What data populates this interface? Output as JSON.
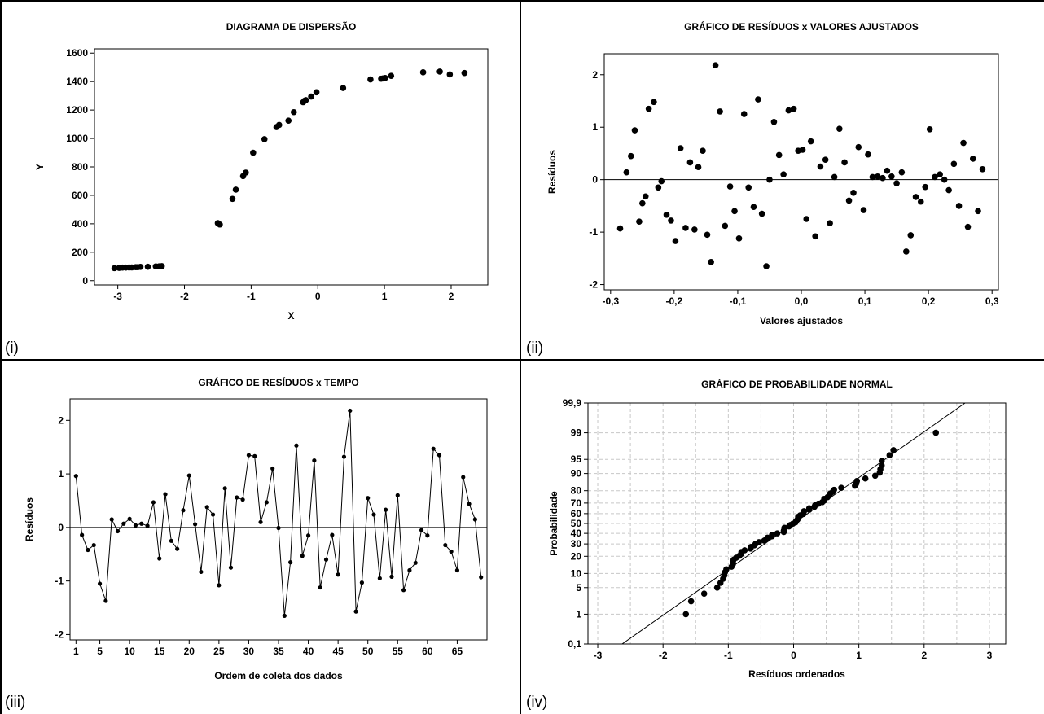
{
  "panels": [
    {
      "label": "(i)"
    },
    {
      "label": "(ii)"
    },
    {
      "label": "(iii)"
    },
    {
      "label": "(iv)"
    }
  ],
  "chart_data": [
    {
      "type": "scatter",
      "title": "DIAGRAMA DE DISPERSÃO",
      "xlabel": "X",
      "ylabel": "Y",
      "xlim": [
        -3.35,
        2.55
      ],
      "ylim": [
        -30,
        1630
      ],
      "xticks": [
        -3,
        -2,
        -1,
        0,
        1,
        2
      ],
      "yticks": [
        0,
        200,
        400,
        600,
        800,
        1000,
        1200,
        1400,
        1600
      ],
      "x": [
        -3.05,
        -2.98,
        -2.93,
        -2.88,
        -2.83,
        -2.79,
        -2.73,
        -2.7,
        -2.66,
        -2.55,
        -2.43,
        -2.38,
        -2.34,
        -1.5,
        -1.47,
        -1.28,
        -1.23,
        -1.12,
        -1.08,
        -0.97,
        -0.8,
        -0.62,
        -0.58,
        -0.44,
        -0.36,
        -0.22,
        -0.2,
        -0.18,
        -0.1,
        -0.02,
        0.38,
        0.79,
        0.95,
        0.98,
        1.01,
        1.1,
        1.58,
        1.83,
        1.98,
        2.2
      ],
      "y": [
        88,
        90,
        92,
        92,
        93,
        93,
        95,
        95,
        97,
        98,
        100,
        101,
        102,
        405,
        395,
        575,
        640,
        735,
        760,
        900,
        995,
        1080,
        1095,
        1125,
        1185,
        1255,
        1265,
        1270,
        1295,
        1325,
        1355,
        1415,
        1420,
        1422,
        1425,
        1440,
        1465,
        1470,
        1450,
        1460
      ]
    },
    {
      "type": "scatter",
      "title": "GRÁFICO DE RESÍDUOS x VALORES AJUSTADOS",
      "xlabel": "Valores ajustados",
      "ylabel": "Resíduos",
      "xlim": [
        -0.31,
        0.31
      ],
      "ylim": [
        -2.1,
        2.4
      ],
      "xticks": [
        -0.3,
        -0.2,
        -0.1,
        0.0,
        0.1,
        0.2,
        0.3
      ],
      "xticklabels": [
        "-0,3",
        "-0,2",
        "-0,1",
        "0,0",
        "0,1",
        "0,2",
        "0,3"
      ],
      "yticks": [
        -2,
        -1,
        0,
        1,
        2
      ],
      "hline": 0,
      "x": [
        -0.285,
        -0.275,
        -0.268,
        -0.262,
        -0.255,
        -0.25,
        -0.245,
        -0.24,
        -0.232,
        -0.225,
        -0.22,
        -0.212,
        -0.205,
        -0.198,
        -0.19,
        -0.182,
        -0.175,
        -0.168,
        -0.162,
        -0.155,
        -0.148,
        -0.142,
        -0.135,
        -0.128,
        -0.12,
        -0.112,
        -0.105,
        -0.098,
        -0.09,
        -0.083,
        -0.075,
        -0.068,
        -0.062,
        -0.055,
        -0.05,
        -0.043,
        -0.035,
        -0.028,
        -0.02,
        -0.012,
        -0.005,
        0.002,
        0.008,
        0.015,
        0.022,
        0.03,
        0.038,
        0.045,
        0.052,
        0.06,
        0.068,
        0.075,
        0.082,
        0.09,
        0.098,
        0.105,
        0.112,
        0.12,
        0.128,
        0.135,
        0.142,
        0.15,
        0.158,
        0.165,
        0.172,
        0.18,
        0.188,
        0.195,
        0.202,
        0.21,
        0.218,
        0.225,
        0.232,
        0.24,
        0.248,
        0.255,
        0.262,
        0.27,
        0.278,
        0.285
      ],
      "y": [
        -0.93,
        0.14,
        0.45,
        0.94,
        -0.8,
        -0.45,
        -0.32,
        1.35,
        1.48,
        -0.15,
        -0.03,
        -0.67,
        -0.78,
        -1.17,
        0.6,
        -0.92,
        0.33,
        -0.95,
        0.24,
        0.55,
        -1.05,
        -1.57,
        2.18,
        1.3,
        -0.88,
        -0.13,
        -0.6,
        -1.12,
        1.25,
        -0.15,
        -0.52,
        1.53,
        -0.65,
        -1.65,
        0.0,
        1.1,
        0.47,
        0.1,
        1.32,
        1.35,
        0.55,
        0.57,
        -0.75,
        0.73,
        -1.08,
        0.25,
        0.38,
        -0.83,
        0.05,
        0.97,
        0.33,
        -0.4,
        -0.25,
        0.62,
        -0.58,
        0.48,
        0.05,
        0.06,
        0.03,
        0.17,
        0.06,
        -0.07,
        0.14,
        -1.37,
        -1.06,
        -0.33,
        -0.42,
        -0.14,
        0.96,
        0.05,
        0.1,
        0.0,
        -0.2,
        0.3,
        -0.5,
        0.7,
        -0.9,
        0.4,
        -0.6,
        0.2
      ]
    },
    {
      "type": "line",
      "title": "GRÁFICO DE RESÍDUOS x TEMPO",
      "xlabel": "Ordem de coleta dos dados",
      "ylabel": "Resíduos",
      "xlim": [
        0,
        70
      ],
      "ylim": [
        -2.1,
        2.4
      ],
      "xticks": [
        1,
        5,
        10,
        15,
        20,
        25,
        30,
        35,
        40,
        45,
        50,
        55,
        60,
        65
      ],
      "yticks": [
        -2,
        -1,
        0,
        1,
        2
      ],
      "hline": 0,
      "x": [
        1,
        2,
        3,
        4,
        5,
        6,
        7,
        8,
        9,
        10,
        11,
        12,
        13,
        14,
        15,
        16,
        17,
        18,
        19,
        20,
        21,
        22,
        23,
        24,
        25,
        26,
        27,
        28,
        29,
        30,
        31,
        32,
        33,
        34,
        35,
        36,
        37,
        38,
        39,
        40,
        41,
        42,
        43,
        44,
        45,
        46,
        47,
        48,
        49,
        50,
        51,
        52,
        53,
        54,
        55,
        56,
        57,
        58,
        59,
        60,
        61,
        62,
        63,
        64,
        65,
        66,
        67,
        68,
        69
      ],
      "y": [
        0.96,
        -0.14,
        -0.42,
        -0.33,
        -1.05,
        -1.37,
        0.15,
        -0.07,
        0.07,
        0.16,
        0.04,
        0.07,
        0.03,
        0.47,
        -0.58,
        0.62,
        -0.25,
        -0.4,
        0.32,
        0.97,
        0.06,
        -0.83,
        0.38,
        0.24,
        -1.08,
        0.73,
        -0.75,
        0.56,
        0.52,
        1.35,
        1.33,
        0.1,
        0.47,
        1.1,
        -0.01,
        -1.65,
        -0.65,
        1.53,
        -0.53,
        -0.15,
        1.25,
        -1.12,
        -0.6,
        -0.14,
        -0.88,
        1.32,
        2.18,
        -1.57,
        -1.03,
        0.55,
        0.24,
        -0.95,
        0.33,
        -0.92,
        0.6,
        -1.17,
        -0.8,
        -0.66,
        -0.05,
        -0.15,
        1.47,
        1.35,
        -0.33,
        -0.45,
        -0.8,
        0.94,
        0.44,
        0.15,
        -0.93
      ]
    },
    {
      "type": "scatter",
      "title": "GRÁFICO DE PROBABILIDADE NORMAL",
      "xlabel": "Resíduos ordenados",
      "ylabel": "Probabilidade",
      "xlim": [
        -3.15,
        3.25
      ],
      "xticks": [
        -3,
        -2,
        -1,
        0,
        1,
        2,
        3
      ],
      "yscale": "normal-probability",
      "yticks": [
        0.1,
        1,
        5,
        10,
        20,
        30,
        40,
        50,
        60,
        70,
        80,
        90,
        95,
        99,
        99.9
      ],
      "yticklabels": [
        "0,1",
        "1",
        "5",
        "10",
        "20",
        "30",
        "40",
        "50",
        "60",
        "70",
        "80",
        "90",
        "95",
        "99",
        "99,9"
      ],
      "grid": true,
      "reference_line": {
        "mean": 0,
        "sd": 0.85
      },
      "x": [
        -1.65,
        -1.57,
        -1.37,
        -1.17,
        -1.12,
        -1.08,
        -1.06,
        -1.05,
        -1.03,
        -0.95,
        -0.93,
        -0.93,
        -0.92,
        -0.88,
        -0.83,
        -0.8,
        -0.8,
        -0.75,
        -0.66,
        -0.65,
        -0.6,
        -0.58,
        -0.53,
        -0.45,
        -0.42,
        -0.4,
        -0.33,
        -0.33,
        -0.25,
        -0.15,
        -0.15,
        -0.14,
        -0.14,
        -0.07,
        -0.05,
        -0.01,
        0.03,
        0.04,
        0.06,
        0.07,
        0.07,
        0.1,
        0.15,
        0.15,
        0.16,
        0.24,
        0.24,
        0.32,
        0.33,
        0.38,
        0.44,
        0.47,
        0.47,
        0.52,
        0.55,
        0.56,
        0.6,
        0.62,
        0.73,
        0.94,
        0.96,
        0.97,
        1.1,
        1.25,
        1.32,
        1.33,
        1.35,
        1.35,
        1.47,
        1.53,
        2.18
      ],
      "y": [
        1.0,
        2.3,
        3.6,
        5.0,
        6.4,
        7.8,
        9.2,
        10.6,
        12.0,
        13.4,
        14.8,
        16.2,
        17.6,
        19.0,
        20.4,
        21.8,
        23.2,
        24.6,
        26.0,
        27.4,
        28.8,
        30.2,
        31.6,
        33.0,
        34.4,
        35.8,
        37.2,
        38.6,
        40.0,
        41.4,
        42.8,
        44.2,
        45.6,
        47.0,
        48.4,
        49.8,
        51.2,
        52.6,
        54.0,
        55.4,
        56.8,
        58.2,
        59.6,
        61.0,
        62.4,
        63.8,
        65.2,
        66.6,
        68.0,
        69.4,
        70.8,
        72.2,
        73.6,
        75.0,
        76.4,
        77.8,
        79.2,
        80.6,
        82.0,
        83.4,
        84.8,
        86.2,
        87.6,
        89.0,
        90.4,
        91.8,
        93.2,
        94.6,
        96.0,
        97.0,
        99.0
      ]
    }
  ]
}
